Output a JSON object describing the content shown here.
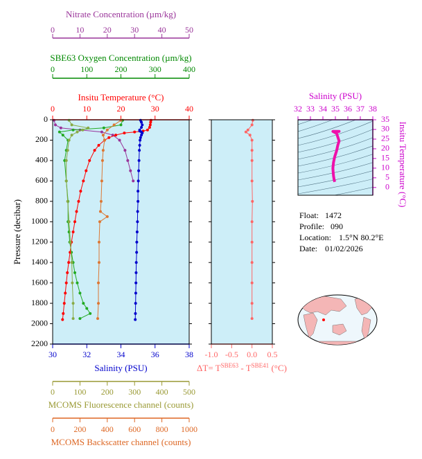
{
  "chart_data": [
    {
      "type": "profile",
      "y_label": "Pressure (decibar)",
      "ylim": [
        0,
        2200
      ],
      "inverted": true,
      "yticks": [
        0,
        200,
        400,
        600,
        800,
        1000,
        1200,
        1400,
        1600,
        1800,
        2000,
        2200
      ],
      "axes": [
        {
          "label": "Nitrate Concentration (µm/kg)",
          "color": "#993399",
          "xlim": [
            0,
            50
          ],
          "xticks": [
            0,
            10,
            20,
            30,
            40,
            50
          ],
          "series": [
            {
              "color": "#993399",
              "markers": true,
              "pressure": [
                5,
                50,
                80,
                100,
                120,
                150,
                200,
                300,
                400,
                500,
                600
              ],
              "values": [
                0.5,
                1,
                3,
                10,
                18,
                22,
                24.5,
                26.5,
                27.5,
                28.5,
                29.5
              ]
            }
          ]
        },
        {
          "label": "SBE63 Oxygen Concentration (µm/kg)",
          "color": "#008800",
          "xlim": [
            0,
            400
          ],
          "xticks": [
            0,
            100,
            200,
            300,
            400
          ],
          "series": [
            {
              "color": "#22aa22",
              "markers": true,
              "pressure": [
                5,
                50,
                80,
                100,
                120,
                150,
                200,
                300,
                400,
                600,
                800,
                1000,
                1100,
                1200,
                1300,
                1400,
                1500,
                1600,
                1700,
                1800,
                1850,
                1900,
                1950
              ],
              "values": [
                205,
                200,
                150,
                60,
                20,
                30,
                45,
                40,
                35,
                40,
                45,
                45,
                48,
                50,
                55,
                60,
                65,
                72,
                80,
                90,
                100,
                110,
                80
              ]
            }
          ]
        },
        {
          "label": "Insitu Temperature (°C)",
          "color": "#ff0000",
          "xlim": [
            0,
            40
          ],
          "xticks": [
            0,
            10,
            20,
            30,
            40
          ],
          "series": [
            {
              "color": "#ff0000",
              "markers": true,
              "pressure": [
                5,
                25,
                50,
                75,
                100,
                110,
                120,
                130,
                150,
                175,
                200,
                250,
                300,
                400,
                500,
                600,
                700,
                800,
                900,
                1000,
                1100,
                1200,
                1300,
                1400,
                1500,
                1600,
                1700,
                1800,
                1900,
                1960
              ],
              "values": [
                28.8,
                28.7,
                28.6,
                28.4,
                27.8,
                26.5,
                24,
                21,
                18.5,
                16.5,
                15.2,
                13.5,
                12.3,
                10.8,
                9.8,
                9,
                8.2,
                7.6,
                7,
                6.5,
                6,
                5.5,
                5.1,
                4.7,
                4.3,
                4,
                3.7,
                3.4,
                3.1,
                2.9
              ]
            }
          ]
        },
        {
          "label": "Salinity (PSU)",
          "color": "#0000cc",
          "xlim": [
            30,
            38
          ],
          "xticks": [
            30,
            32,
            34,
            36,
            38
          ],
          "series": [
            {
              "color": "#0000cc",
              "markers": true,
              "pressure": [
                5,
                25,
                50,
                75,
                100,
                110,
                120,
                130,
                150,
                175,
                200,
                250,
                300,
                400,
                500,
                600,
                700,
                800,
                900,
                1000,
                1100,
                1200,
                1300,
                1400,
                1500,
                1600,
                1700,
                1800,
                1900,
                1960
              ],
              "values": [
                35.15,
                35.2,
                35.25,
                35.2,
                35.1,
                35.1,
                35.2,
                35.25,
                35.2,
                35.15,
                35.12,
                35.1,
                35.08,
                35.06,
                35.04,
                35.02,
                35,
                35,
                34.98,
                34.97,
                34.95,
                34.93,
                34.92,
                34.9,
                34.89,
                34.88,
                34.87,
                34.86,
                34.85,
                34.84
              ]
            }
          ]
        },
        {
          "label": "MCOMS Fluorescence channel (counts)",
          "color": "#999933",
          "xlim": [
            0,
            500
          ],
          "xticks": [
            0,
            100,
            200,
            300,
            400,
            500
          ],
          "series": [
            {
              "color": "#88aa44",
              "markers": true,
              "pressure": [
                5,
                50,
                80,
                100,
                120,
                150,
                200,
                300,
                400,
                600,
                800,
                1000,
                1200,
                1400,
                1600,
                1800,
                1950
              ],
              "values": [
                60,
                70,
                130,
                110,
                90,
                70,
                60,
                55,
                50,
                50,
                55,
                60,
                65,
                70,
                72,
                75,
                75
              ]
            }
          ]
        },
        {
          "label": "MCOMS Backscatter channel (counts)",
          "color": "#dd6622",
          "xlim": [
            0,
            1000
          ],
          "xticks": [
            0,
            200,
            400,
            600,
            800,
            1000
          ],
          "series": [
            {
              "color": "#dd7733",
              "markers": true,
              "pressure": [
                5,
                50,
                100,
                150,
                200,
                300,
                400,
                600,
                800,
                900,
                950,
                1000,
                1200,
                1400,
                1600,
                1800,
                1950
              ],
              "values": [
                500,
                450,
                400,
                370,
                380,
                370,
                365,
                360,
                355,
                350,
                400,
                345,
                340,
                340,
                335,
                335,
                330
              ]
            }
          ]
        }
      ]
    },
    {
      "type": "profile",
      "ylim": [
        0,
        2200
      ],
      "inverted": true,
      "axes": [
        {
          "label": [
            "ΔT= T",
            "SBE63",
            " - T",
            "SBE41",
            " (°C)"
          ],
          "color": "#ff6666",
          "xlim": [
            -1,
            0.5
          ],
          "xticks": [
            {
              "value": -1,
              "label": "-1.0"
            },
            -0.5,
            {
              "value": 0,
              "label": "0.0"
            },
            0.5
          ],
          "series": [
            {
              "color": "#ff6666",
              "markers": true,
              "pressure": [
                5,
                50,
                100,
                120,
                150,
                200,
                300,
                400,
                600,
                800,
                1000,
                1200,
                1400,
                1600,
                1800,
                1950
              ],
              "values": [
                0.02,
                0,
                -0.1,
                -0.15,
                -0.05,
                0,
                0,
                0,
                0,
                0.01,
                0,
                0,
                0,
                0,
                0,
                0
              ]
            }
          ]
        }
      ]
    },
    {
      "type": "line",
      "title": "Salinity (PSU)",
      "y_label": "Insitu Temperature (°C)",
      "color": "#ee11aa",
      "x": [
        34.95,
        34.9,
        34.85,
        34.82,
        34.8,
        34.85,
        34.95,
        35.1,
        35.2,
        35.3,
        35.1,
        34.8,
        35.3,
        35.2
      ],
      "values": [
        2.9,
        4,
        6,
        8,
        10,
        13,
        16,
        19,
        22,
        24,
        28,
        29,
        29,
        28.8
      ],
      "xlim": [
        32,
        38
      ],
      "xticks": [
        32,
        33,
        34,
        35,
        36,
        37,
        38
      ],
      "ylim": [
        -4,
        35
      ],
      "yticks": [
        0,
        5,
        10,
        15,
        20,
        25,
        30,
        35
      ],
      "axis_color": "#cc00cc"
    }
  ],
  "info": [
    {
      "label": "Float:",
      "value": "1472"
    },
    {
      "label": "Profile:",
      "value": "090"
    },
    {
      "label": "Location:",
      "value": "1.5°N  80.2°E"
    },
    {
      "label": "Date:",
      "value": "01/02/2026"
    }
  ]
}
